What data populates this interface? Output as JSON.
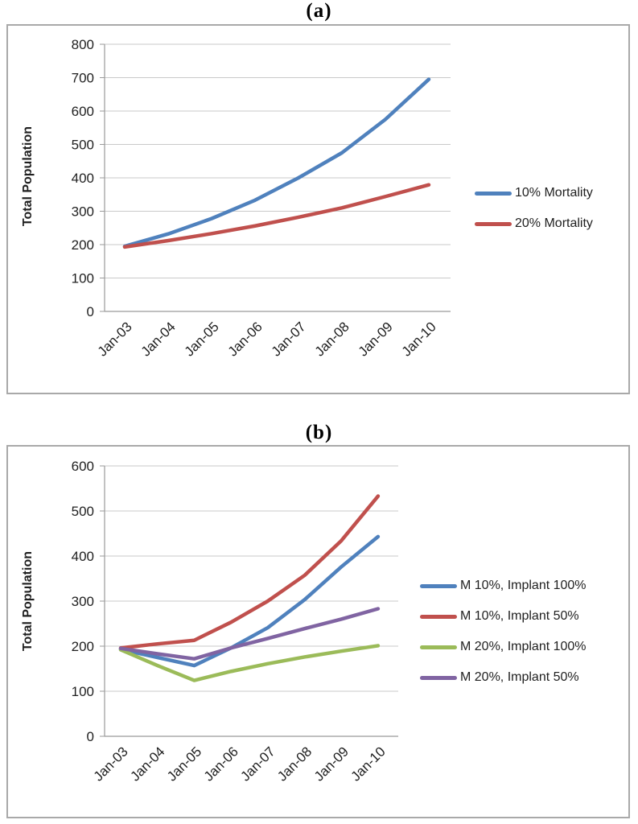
{
  "chart_data": [
    {
      "type": "line",
      "title": "(a)",
      "ylabel": "Total Population",
      "x_categories": [
        "Jan-03",
        "Jan-04",
        "Jan-05",
        "Jan-06",
        "Jan-07",
        "Jan-08",
        "Jan-09",
        "Jan-10"
      ],
      "ylim": [
        0,
        800
      ],
      "ytick_step": 100,
      "grid": true,
      "legend_position": "right",
      "series": [
        {
          "name": "10% Mortality",
          "color": "#4F81BD",
          "values": [
            195,
            232,
            278,
            333,
            400,
            475,
            575,
            695
          ]
        },
        {
          "name": "20% Mortality",
          "color": "#C0504D",
          "values": [
            193,
            212,
            233,
            256,
            282,
            310,
            344,
            379
          ]
        }
      ]
    },
    {
      "type": "line",
      "title": "(b)",
      "ylabel": "Total Population",
      "x_categories": [
        "Jan-03",
        "Jan-04",
        "Jan-05",
        "Jan-06",
        "Jan-07",
        "Jan-08",
        "Jan-09",
        "Jan-10"
      ],
      "ylim": [
        0,
        600
      ],
      "ytick_step": 100,
      "grid": true,
      "legend_position": "right",
      "series": [
        {
          "name": "M 10%, Implant 100%",
          "color": "#4F81BD",
          "values": [
            193,
            175,
            157,
            196,
            241,
            303,
            376,
            443
          ]
        },
        {
          "name": "M 10%, Implant 50%",
          "color": "#C0504D",
          "values": [
            196,
            205,
            213,
            253,
            300,
            357,
            434,
            533
          ]
        },
        {
          "name": "M 20%, Implant 100%",
          "color": "#9BBB59",
          "values": [
            192,
            157,
            124,
            144,
            161,
            176,
            189,
            201
          ]
        },
        {
          "name": "M 20%, Implant 50%",
          "color": "#8064A2",
          "values": [
            195,
            183,
            172,
            196,
            217,
            239,
            260,
            283
          ]
        }
      ]
    }
  ]
}
